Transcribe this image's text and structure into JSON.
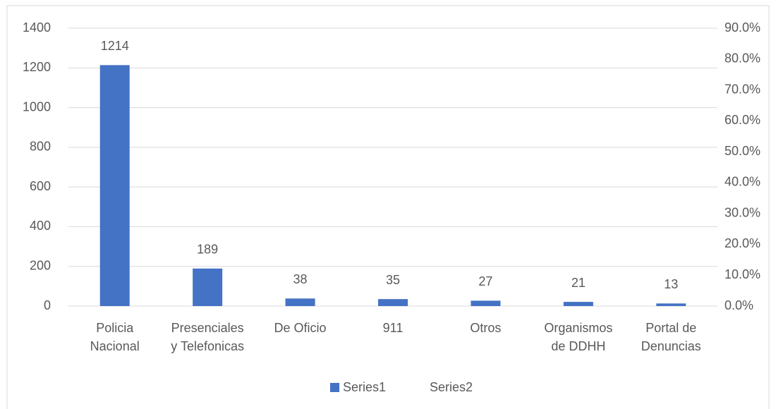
{
  "chart_data": {
    "type": "bar",
    "categories": [
      "Policia\nNacional",
      "Presenciales\ny Telefonicas",
      "De Oficio",
      "911",
      "Otros",
      "Organismos\nde DDHH",
      "Portal de\nDenuncias"
    ],
    "series": [
      {
        "name": "Series1",
        "color": "#4472c4",
        "values": [
          1214,
          189,
          38,
          35,
          27,
          21,
          13
        ]
      },
      {
        "name": "Series2",
        "color": null,
        "axis": "y2",
        "values": [
          null,
          null,
          null,
          null,
          null,
          null,
          null
        ]
      }
    ],
    "ylim": [
      0,
      1400
    ],
    "yticks": [
      0,
      200,
      400,
      600,
      800,
      1000,
      1200,
      1400
    ],
    "y2lim": [
      0,
      90
    ],
    "y2ticks": [
      {
        "value": 0,
        "label": "0.0%"
      },
      {
        "value": 10,
        "label": "10.0%"
      },
      {
        "value": 20,
        "label": "20.0%"
      },
      {
        "value": 30,
        "label": "30.0%"
      },
      {
        "value": 40,
        "label": "40.0%"
      },
      {
        "value": 50,
        "label": "50.0%"
      },
      {
        "value": 60,
        "label": "60.0%"
      },
      {
        "value": 70,
        "label": "70.0%"
      },
      {
        "value": 80,
        "label": "80.0%"
      },
      {
        "value": 90,
        "label": "90.0%"
      }
    ],
    "grid": true,
    "legend": "bottom",
    "data_labels": true
  }
}
